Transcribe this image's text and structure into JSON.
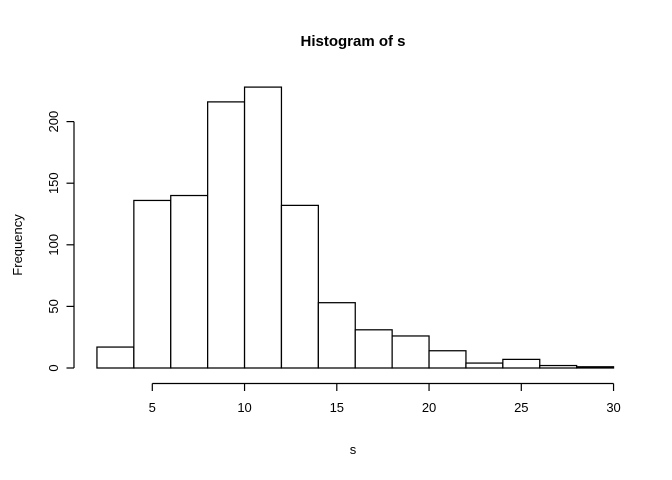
{
  "chart_data": {
    "type": "bar",
    "subtype": "histogram",
    "title": "Histogram of s",
    "xlabel": "s",
    "ylabel": "Frequency",
    "bin_edges": [
      2,
      4,
      6,
      8,
      10,
      12,
      14,
      16,
      18,
      20,
      22,
      24,
      26,
      28,
      30
    ],
    "counts": [
      17,
      136,
      140,
      216,
      228,
      132,
      53,
      31,
      26,
      14,
      4,
      7,
      2,
      1
    ],
    "x_axis": {
      "ticks": [
        5,
        10,
        15,
        20,
        25,
        30
      ],
      "range": [
        2,
        30
      ]
    },
    "y_axis": {
      "ticks": [
        0,
        50,
        100,
        150,
        200
      ],
      "range": [
        0,
        228
      ]
    },
    "grid": false,
    "legend": false,
    "colors": {
      "bar_fill": "#ffffff",
      "bar_stroke": "#000000",
      "axis": "#000000",
      "text": "#000000",
      "background": "#ffffff"
    }
  }
}
